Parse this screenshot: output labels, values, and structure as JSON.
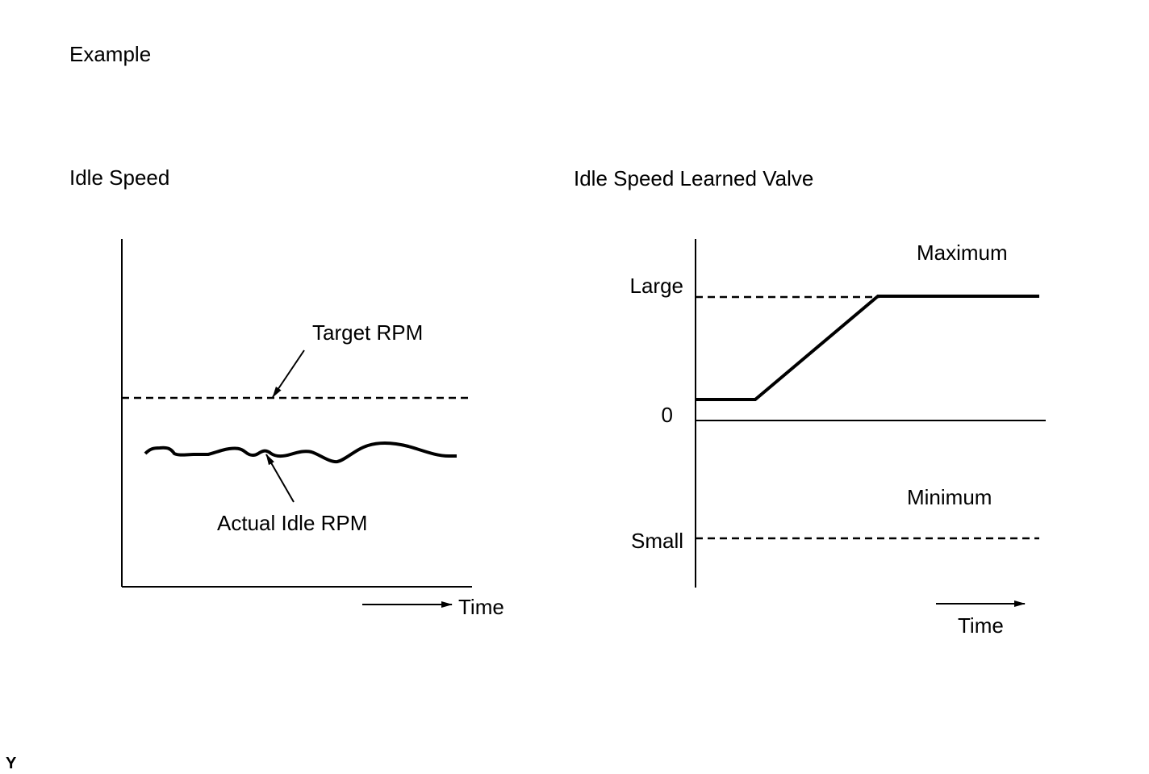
{
  "heading": "Example",
  "figure_code": "Y",
  "left_chart": {
    "title": "Idle Speed",
    "target_label": "Target RPM",
    "actual_label": "Actual Idle RPM",
    "time_label": "Time"
  },
  "right_chart": {
    "title": "Idle Speed Learned Valve",
    "large_label": "Large",
    "zero_label": "0",
    "small_label": "Small",
    "maximum_label": "Maximum",
    "minimum_label": "Minimum",
    "time_label": "Time"
  },
  "colors": {
    "ink": "#000000",
    "background": "#ffffff"
  }
}
